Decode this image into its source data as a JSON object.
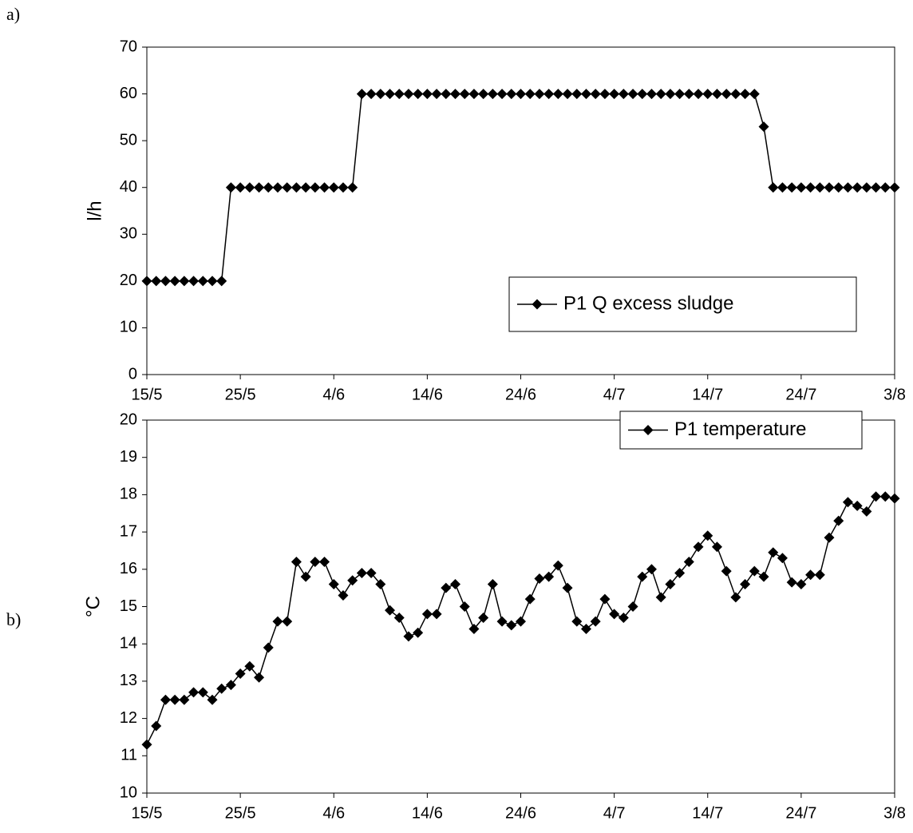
{
  "chart_data": [
    {
      "type": "line",
      "panel_label": "a)",
      "ylabel": "l/h",
      "x": [
        "15/5",
        "16/5",
        "17/5",
        "18/5",
        "19/5",
        "20/5",
        "21/5",
        "22/5",
        "23/5",
        "24/5",
        "25/5",
        "26/5",
        "27/5",
        "28/5",
        "29/5",
        "30/5",
        "31/5",
        "1/6",
        "2/6",
        "3/6",
        "4/6",
        "5/6",
        "6/6",
        "7/6",
        "8/6",
        "9/6",
        "10/6",
        "11/6",
        "12/6",
        "13/6",
        "14/6",
        "15/6",
        "16/6",
        "17/6",
        "18/6",
        "19/6",
        "20/6",
        "21/6",
        "22/6",
        "23/6",
        "24/6",
        "25/6",
        "26/6",
        "27/6",
        "28/6",
        "29/6",
        "30/6",
        "1/7",
        "2/7",
        "3/7",
        "4/7",
        "5/7",
        "6/7",
        "7/7",
        "8/7",
        "9/7",
        "10/7",
        "11/7",
        "12/7",
        "13/7",
        "14/7",
        "15/7",
        "16/7",
        "17/7",
        "18/7",
        "19/7",
        "20/7",
        "21/7",
        "22/7",
        "23/7",
        "24/7",
        "25/7",
        "26/7",
        "27/7",
        "28/7",
        "29/7",
        "30/7",
        "31/7",
        "1/8",
        "2/8",
        "3/8"
      ],
      "series": [
        {
          "name": "P1 Q excess sludge",
          "color": "#000000",
          "values": [
            20,
            20,
            20,
            20,
            20,
            20,
            20,
            20,
            20,
            40,
            40,
            40,
            40,
            40,
            40,
            40,
            40,
            40,
            40,
            40,
            40,
            40,
            40,
            60,
            60,
            60,
            60,
            60,
            60,
            60,
            60,
            60,
            60,
            60,
            60,
            60,
            60,
            60,
            60,
            60,
            60,
            60,
            60,
            60,
            60,
            60,
            60,
            60,
            60,
            60,
            60,
            60,
            60,
            60,
            60,
            60,
            60,
            60,
            60,
            60,
            60,
            60,
            60,
            60,
            60,
            60,
            53,
            40,
            40,
            40,
            40,
            40,
            40,
            40,
            40,
            40,
            40,
            40,
            40,
            40,
            40
          ]
        }
      ],
      "xlim": [
        "15/5",
        "3/8"
      ],
      "xticks": [
        "15/5",
        "25/5",
        "4/6",
        "14/6",
        "24/6",
        "4/7",
        "14/7",
        "24/7",
        "3/8"
      ],
      "ylim": [
        0,
        70
      ],
      "yticks": [
        0,
        10,
        20,
        30,
        40,
        50,
        60,
        70
      ],
      "grid": false,
      "legend": "lower right"
    },
    {
      "type": "line",
      "panel_label": "b)",
      "ylabel": "°C",
      "x": [
        "15/5",
        "16/5",
        "17/5",
        "18/5",
        "19/5",
        "20/5",
        "21/5",
        "22/5",
        "23/5",
        "24/5",
        "25/5",
        "26/5",
        "27/5",
        "28/5",
        "29/5",
        "30/5",
        "31/5",
        "1/6",
        "2/6",
        "3/6",
        "4/6",
        "5/6",
        "6/6",
        "7/6",
        "8/6",
        "9/6",
        "10/6",
        "11/6",
        "12/6",
        "13/6",
        "14/6",
        "15/6",
        "16/6",
        "17/6",
        "18/6",
        "19/6",
        "20/6",
        "21/6",
        "22/6",
        "23/6",
        "24/6",
        "25/6",
        "26/6",
        "27/6",
        "28/6",
        "29/6",
        "30/6",
        "1/7",
        "2/7",
        "3/7",
        "4/7",
        "5/7",
        "6/7",
        "7/7",
        "8/7",
        "9/7",
        "10/7",
        "11/7",
        "12/7",
        "13/7",
        "14/7",
        "15/7",
        "16/7",
        "17/7",
        "18/7",
        "19/7",
        "20/7",
        "21/7",
        "22/7",
        "23/7",
        "24/7",
        "25/7",
        "26/7",
        "27/7",
        "28/7",
        "29/7",
        "30/7",
        "31/7",
        "1/8",
        "2/8",
        "3/8"
      ],
      "series": [
        {
          "name": "P1 temperature",
          "color": "#000000",
          "values": [
            11.3,
            11.8,
            12.5,
            12.5,
            12.5,
            12.7,
            12.7,
            12.5,
            12.8,
            12.9,
            13.2,
            13.4,
            13.1,
            13.9,
            14.6,
            14.6,
            16.2,
            15.8,
            16.2,
            16.2,
            15.6,
            15.3,
            15.7,
            15.9,
            15.9,
            15.6,
            14.9,
            14.7,
            14.2,
            14.3,
            14.8,
            14.8,
            15.5,
            15.6,
            15.0,
            14.4,
            14.7,
            15.6,
            14.6,
            14.5,
            14.6,
            15.2,
            15.75,
            15.8,
            16.1,
            15.5,
            14.6,
            14.4,
            14.6,
            15.2,
            14.8,
            14.7,
            15.0,
            15.8,
            16.0,
            15.25,
            15.6,
            15.9,
            16.2,
            16.6,
            16.9,
            16.6,
            15.95,
            15.25,
            15.6,
            15.95,
            15.8,
            16.45,
            16.3,
            15.65,
            15.6,
            15.85,
            15.85,
            16.85,
            17.3,
            17.8,
            17.7,
            17.55,
            17.95,
            17.95,
            17.9
          ]
        }
      ],
      "xlim": [
        "15/5",
        "3/8"
      ],
      "xticks": [
        "15/5",
        "25/5",
        "4/6",
        "14/6",
        "24/6",
        "4/7",
        "14/7",
        "24/7",
        "3/8"
      ],
      "ylim": [
        10,
        20
      ],
      "yticks": [
        10,
        11,
        12,
        13,
        14,
        15,
        16,
        17,
        18,
        19,
        20
      ],
      "grid": false,
      "legend": "lower right"
    }
  ]
}
